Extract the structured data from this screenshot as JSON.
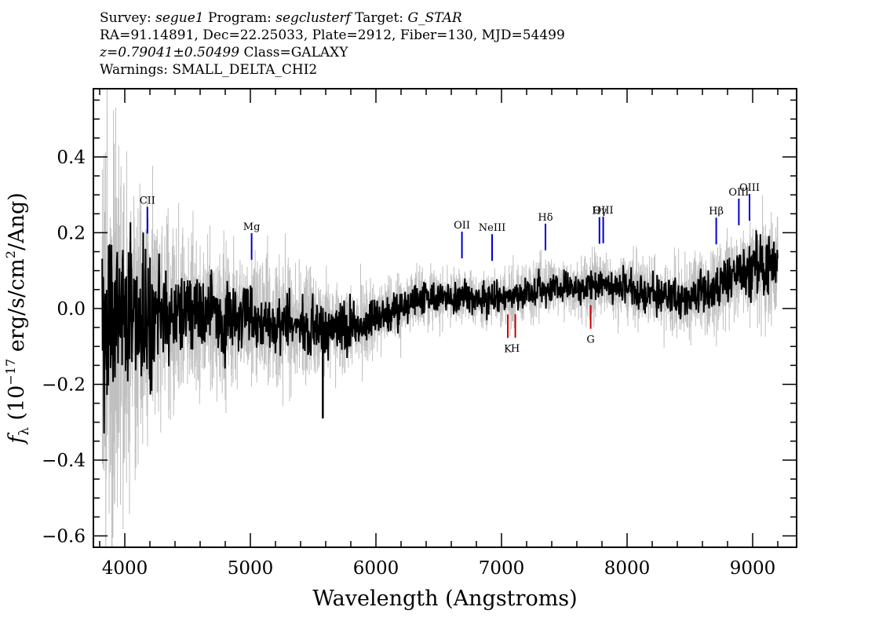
{
  "header": {
    "survey_label": "Survey:",
    "survey": "segue1",
    "program_label": "Program:",
    "program": "segclusterf",
    "target_label": "Target:",
    "target": "G_STAR",
    "line2": "RA=91.14891, Dec=22.25033, Plate=2912, Fiber=130, MJD=54499",
    "z_text": "z=0.79041±0.50499",
    "class_text": "Class=GALAXY",
    "warnings": "Warnings: SMALL_DELTA_CHI2"
  },
  "chart_data": {
    "type": "line",
    "xlabel": "Wavelength (Angstroms)",
    "ylabel": "f_λ (10^-17 erg/s/cm^2/Ang)",
    "ylabel_parts": {
      "f": "f",
      "sub": "λ",
      "mid": " (10",
      "exp1": "−17",
      "unit": " erg/s/cm",
      "exp2": "2",
      "tail": "/Ang)"
    },
    "xlim": [
      3750,
      9350
    ],
    "ylim": [
      -0.63,
      0.58
    ],
    "xticks": [
      4000,
      5000,
      6000,
      7000,
      8000,
      9000
    ],
    "xtick_labels": [
      "4000",
      "5000",
      "6000",
      "7000",
      "8000",
      "9000"
    ],
    "yticks": [
      -0.6,
      -0.4,
      -0.2,
      0.0,
      0.2,
      0.4
    ],
    "ytick_labels": [
      "−0.6",
      "−0.4",
      "−0.2",
      "0.0",
      "0.2",
      "0.4"
    ],
    "grid": false,
    "series": [
      {
        "role": "flux",
        "color": "#000000",
        "x": [
          3820,
          3900,
          4000,
          4100,
          4200,
          4300,
          4400,
          4500,
          4600,
          4700,
          4800,
          4900,
          5000,
          5100,
          5200,
          5300,
          5400,
          5500,
          5600,
          5700,
          5800,
          5900,
          6000,
          6100,
          6200,
          6300,
          6400,
          6500,
          6600,
          6700,
          6800,
          6900,
          7000,
          7100,
          7200,
          7300,
          7400,
          7500,
          7600,
          7700,
          7800,
          7900,
          8000,
          8100,
          8200,
          8300,
          8400,
          8500,
          8600,
          8700,
          8800,
          8900,
          9000,
          9100,
          9200
        ],
        "y": [
          -0.05,
          -0.04,
          -0.03,
          -0.02,
          -0.02,
          -0.01,
          -0.02,
          -0.02,
          -0.01,
          -0.02,
          -0.03,
          -0.02,
          -0.02,
          -0.03,
          -0.04,
          -0.04,
          -0.04,
          -0.04,
          -0.05,
          -0.05,
          -0.05,
          -0.04,
          -0.02,
          -0.01,
          0.0,
          0.02,
          0.03,
          0.035,
          0.03,
          0.035,
          0.02,
          0.03,
          0.03,
          0.03,
          0.04,
          0.05,
          0.06,
          0.06,
          0.05,
          0.06,
          0.07,
          0.06,
          0.06,
          0.05,
          0.04,
          0.03,
          0.03,
          0.03,
          0.04,
          0.05,
          0.08,
          0.1,
          0.11,
          0.1,
          0.12
        ]
      },
      {
        "role": "noise",
        "color": "#c0c0c0",
        "x": [
          3820,
          4000,
          4300,
          4600,
          5000,
          5500,
          6000,
          6500,
          7000,
          7500,
          8000,
          8500,
          9000,
          9200
        ],
        "y": [
          0.33,
          0.2,
          0.13,
          0.1,
          0.09,
          0.07,
          0.05,
          0.04,
          0.035,
          0.04,
          0.045,
          0.05,
          0.065,
          0.08
        ]
      }
    ],
    "spikes": [
      {
        "x": 5577,
        "y": -0.29
      }
    ],
    "emission_lines": [
      {
        "label": "CII",
        "x": 4180,
        "color": "#0000cc"
      },
      {
        "label": "Mg",
        "x": 5010,
        "color": "#0000cc"
      },
      {
        "label": "OII",
        "x": 6685,
        "color": "#0000cc"
      },
      {
        "label": "NeIII",
        "x": 6925,
        "color": "#0000cc"
      },
      {
        "label": "Hδ",
        "x": 7350,
        "color": "#0000cc"
      },
      {
        "label": "Hγ",
        "x": 7780,
        "color": "#0000cc"
      },
      {
        "label": "OIII",
        "x": 7810,
        "color": "#0000cc"
      },
      {
        "label": "Hβ",
        "x": 8710,
        "color": "#0000cc"
      },
      {
        "label": "OIII",
        "x": 8890,
        "color": "#0000cc"
      },
      {
        "label": "OIII",
        "x": 8975,
        "color": "#0000cc"
      }
    ],
    "absorption_lines": [
      {
        "label": "K",
        "x": 7050,
        "color": "#cc0000"
      },
      {
        "label": "H",
        "x": 7110,
        "color": "#cc0000"
      },
      {
        "label": "G",
        "x": 7710,
        "color": "#cc0000"
      }
    ]
  }
}
